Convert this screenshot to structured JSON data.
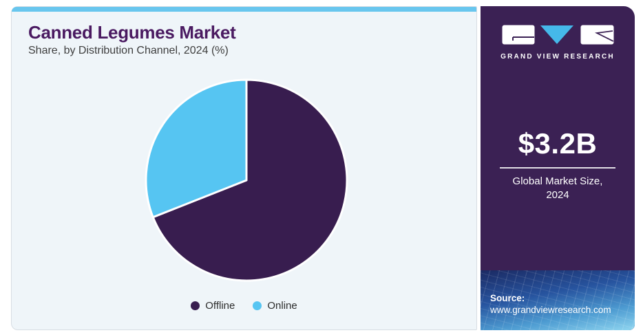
{
  "header": {
    "title": "Canned Legumes Market",
    "subtitle": "Share, by Distribution Channel, 2024 (%)"
  },
  "chart_data": {
    "type": "pie",
    "title": "Canned Legumes Market",
    "subtitle": "Share, by Distribution Channel, 2024 (%)",
    "labels": [
      "Offline",
      "Online"
    ],
    "values": [
      69,
      31
    ],
    "unit": "%",
    "colors": [
      "#381d4f",
      "#56c5f2"
    ],
    "start_angle_deg": 0,
    "direction": "clockwise",
    "legend_position": "bottom",
    "slice_border_color": "#ffffff"
  },
  "sidebar": {
    "brand_name": "GRAND VIEW RESEARCH",
    "stat": {
      "value": "$3.2B",
      "caption_line1": "Global Market Size,",
      "caption_line2": "2024"
    },
    "source_label": "Source:",
    "source_url": "www.grandviewresearch.com"
  },
  "colors": {
    "top_strip_blue": "#68c6ee",
    "panel_background": "#eff5f9",
    "sidebar_purple": "#3b2154",
    "title_purple": "#4a1a61",
    "logo_triangle_blue": "#45b8e9"
  }
}
